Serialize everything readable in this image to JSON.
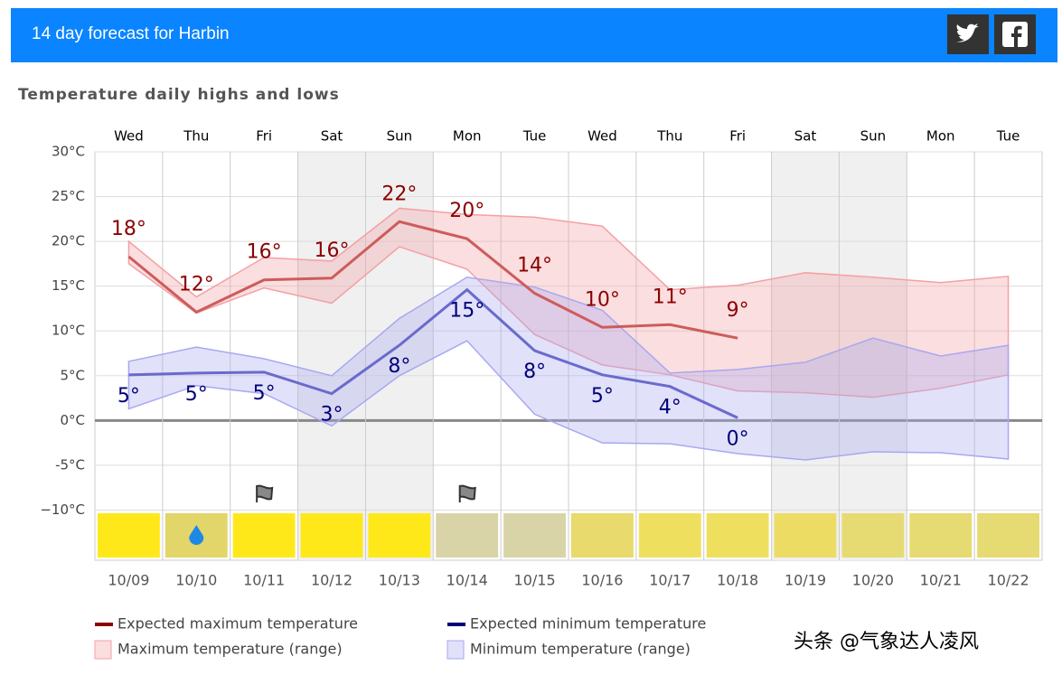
{
  "header": {
    "title": "14 day forecast for Harbin"
  },
  "chart_data": {
    "type": "line",
    "title": "Temperature daily highs and lows",
    "categories": [
      "Wed",
      "Thu",
      "Fri",
      "Sat",
      "Sun",
      "Mon",
      "Tue",
      "Wed",
      "Thu",
      "Fri",
      "Sat",
      "Sun",
      "Mon",
      "Tue"
    ],
    "dates": [
      "10/09",
      "10/10",
      "10/11",
      "10/12",
      "10/13",
      "10/14",
      "10/15",
      "10/16",
      "10/17",
      "10/18",
      "10/19",
      "10/20",
      "10/21",
      "10/22"
    ],
    "ylim": [
      -15.6,
      30
    ],
    "yticks": [
      {
        "value": 30,
        "label": "30°C"
      },
      {
        "value": 25,
        "label": "25°C"
      },
      {
        "value": 20,
        "label": "20°C"
      },
      {
        "value": 15,
        "label": "15°C"
      },
      {
        "value": 10,
        "label": "10°C"
      },
      {
        "value": 5,
        "label": "5°C"
      },
      {
        "value": 0,
        "label": "0°C"
      },
      {
        "value": -5,
        "label": "-5°C"
      },
      {
        "value": -10,
        "label": "−10°C"
      }
    ],
    "grid": true,
    "weekend_shade": [
      false,
      false,
      false,
      true,
      true,
      false,
      false,
      false,
      false,
      false,
      true,
      true,
      false,
      false
    ],
    "weather_colors": [
      "#ffe81a",
      "#e2d56a",
      "#ffe81a",
      "#ffe81a",
      "#ffe81a",
      "#d8d4a8",
      "#d8d4a8",
      "#e8da6c",
      "#efdf5e",
      "#efdf5e",
      "#eddc64",
      "#e6da72",
      "#e6da72",
      "#e6da72"
    ],
    "ranges": [
      {
        "name": "Maximum temperature (range)",
        "color": "#f4a0a4",
        "upper": [
          20,
          13.8,
          18.2,
          17.8,
          23.7,
          23.0,
          22.7,
          21.7,
          14.6,
          15.1,
          16.5,
          16.0,
          15.4,
          16.1
        ],
        "lower": [
          17.5,
          12.0,
          14.8,
          13.1,
          19.4,
          16.9,
          9.6,
          6.2,
          5.1,
          3.3,
          3.1,
          2.6,
          3.6,
          5.1
        ]
      },
      {
        "name": "Minimum temperature (range)",
        "color": "#a8a8f0",
        "upper": [
          6.6,
          8.2,
          6.9,
          5.0,
          11.4,
          16.0,
          14.9,
          12.3,
          5.3,
          5.7,
          6.5,
          9.2,
          7.2,
          8.4
        ],
        "lower": [
          1.3,
          3.9,
          3.0,
          -0.6,
          5.0,
          8.9,
          0.7,
          -2.5,
          -2.6,
          -3.7,
          -4.4,
          -3.5,
          -3.6,
          -4.3
        ]
      }
    ],
    "series": [
      {
        "name": "Expected maximum temperature",
        "color": "#cd5c5c",
        "label_color": "#8b0000",
        "legend_color": "#8b0000",
        "label_side": "above",
        "values": [
          18.3,
          12.1,
          15.7,
          15.9,
          22.2,
          20.3,
          14.2,
          10.4,
          10.7,
          9.2,
          null,
          null,
          null,
          null
        ],
        "value_labels": [
          "18°",
          "12°",
          "16°",
          "16°",
          "22°",
          "20°",
          "14°",
          "10°",
          "11°",
          "9°",
          null,
          null,
          null,
          null
        ]
      },
      {
        "name": "Expected minimum temperature",
        "color": "#6a6acd",
        "label_color": "#00007a",
        "legend_color": "#00007a",
        "label_side": "below",
        "values": [
          5.1,
          5.3,
          5.4,
          3.0,
          8.4,
          14.6,
          7.8,
          5.1,
          3.8,
          0.3,
          null,
          null,
          null,
          null
        ],
        "value_labels": [
          "5°",
          "5°",
          "5°",
          "3°",
          "8°",
          "15°",
          "8°",
          "5°",
          "4°",
          "0°",
          null,
          null,
          null,
          null
        ]
      }
    ]
  },
  "watermark": "头条 @气象达人凌风"
}
